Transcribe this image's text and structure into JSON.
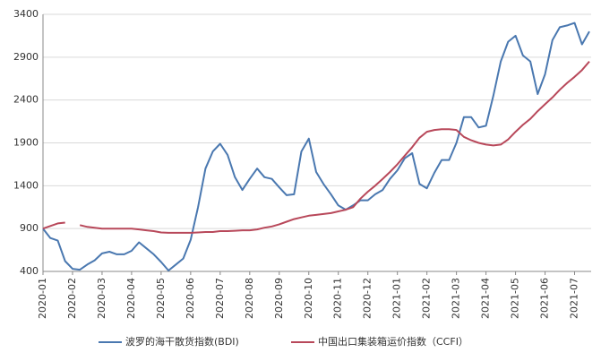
{
  "chart_data": {
    "type": "line",
    "categories": [
      "2020-01",
      null,
      null,
      null,
      "2020-02",
      null,
      null,
      null,
      "2020-03",
      null,
      null,
      null,
      "2020-04",
      null,
      null,
      null,
      "2020-05",
      null,
      null,
      null,
      "2020-06",
      null,
      null,
      null,
      "2020-07",
      null,
      null,
      null,
      "2020-08",
      null,
      null,
      null,
      "2020-09",
      null,
      null,
      null,
      "2020-10",
      null,
      null,
      null,
      "2020-11",
      null,
      null,
      null,
      "2020-12",
      null,
      null,
      null,
      "2021-01",
      null,
      null,
      null,
      "2021-02",
      null,
      null,
      null,
      "2021-03",
      null,
      null,
      null,
      "2021-04",
      null,
      null,
      null,
      "2021-05",
      null,
      null,
      null,
      "2021-06",
      null,
      null,
      null,
      "2021-07",
      null,
      null
    ],
    "series": [
      {
        "name": "波罗的海干散货指数(BDI)",
        "color": "#4a78b0",
        "values": [
          900,
          790,
          760,
          520,
          430,
          420,
          480,
          530,
          610,
          630,
          600,
          600,
          640,
          740,
          670,
          600,
          510,
          410,
          480,
          550,
          770,
          1150,
          1600,
          1800,
          1890,
          1760,
          1500,
          1350,
          1480,
          1600,
          1500,
          1480,
          1380,
          1290,
          1300,
          1800,
          1950,
          1560,
          1420,
          1300,
          1170,
          1120,
          1170,
          1230,
          1230,
          1300,
          1350,
          1480,
          1580,
          1720,
          1780,
          1420,
          1370,
          1550,
          1700,
          1700,
          1900,
          2200,
          2200,
          2080,
          2100,
          2450,
          2850,
          3080,
          3150,
          2920,
          2850,
          2470,
          2700,
          3100,
          3250,
          3270,
          3300,
          3050,
          3200
        ]
      },
      {
        "name": "中国出口集装箱运价指数（CCFI）",
        "color": "#b8485a",
        "values": [
          900,
          930,
          960,
          970,
          null,
          940,
          920,
          910,
          900,
          900,
          900,
          900,
          900,
          890,
          880,
          870,
          855,
          850,
          850,
          850,
          850,
          855,
          860,
          860,
          870,
          870,
          875,
          880,
          880,
          890,
          910,
          925,
          950,
          980,
          1010,
          1030,
          1050,
          1060,
          1070,
          1080,
          1100,
          1120,
          1150,
          1250,
          1330,
          1400,
          1480,
          1560,
          1650,
          1750,
          1850,
          1960,
          2030,
          2050,
          2060,
          2060,
          2050,
          1970,
          1930,
          1900,
          1880,
          1870,
          1880,
          1940,
          2030,
          2110,
          2180,
          2270,
          2350,
          2430,
          2520,
          2600,
          2670,
          2750,
          2850
        ]
      }
    ],
    "ylim": [
      400,
      3400
    ],
    "yticks": [
      400,
      900,
      1400,
      1900,
      2400,
      2900,
      3400
    ],
    "grid": true
  }
}
